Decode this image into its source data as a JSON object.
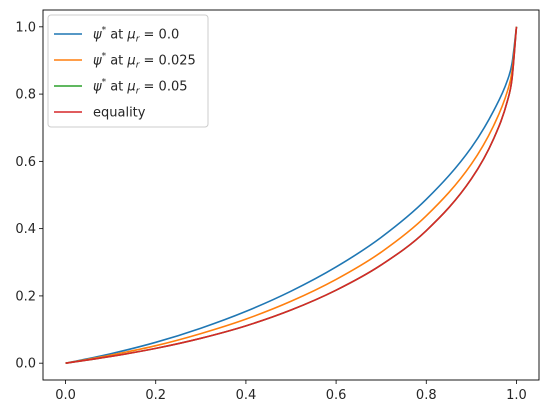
{
  "chart_data": {
    "type": "line",
    "title": "",
    "xlabel": "",
    "ylabel": "",
    "xlim": [
      -0.05,
      1.05
    ],
    "ylim": [
      -0.05,
      1.05
    ],
    "xticks": [
      "0.0",
      "0.2",
      "0.4",
      "0.6",
      "0.8",
      "1.0"
    ],
    "yticks": [
      "0.0",
      "0.2",
      "0.4",
      "0.6",
      "0.8",
      "1.0"
    ],
    "grid": false,
    "legend_position": "top-left",
    "x": [
      0.0,
      0.1,
      0.2,
      0.3,
      0.4,
      0.5,
      0.6,
      0.7,
      0.8,
      0.9,
      0.95,
      0.98,
      0.99,
      1.0
    ],
    "series": [
      {
        "name": "ψ* at μr = 0.0",
        "color": "#1f77b4",
        "values": [
          0.0,
          0.028,
          0.062,
          0.104,
          0.154,
          0.214,
          0.286,
          0.374,
          0.487,
          0.641,
          0.752,
          0.841,
          0.89,
          1.0
        ]
      },
      {
        "name": "ψ* at μr = 0.025",
        "color": "#ff7f0e",
        "values": [
          0.0,
          0.024,
          0.052,
          0.088,
          0.131,
          0.184,
          0.249,
          0.33,
          0.438,
          0.592,
          0.708,
          0.809,
          0.866,
          1.0
        ]
      },
      {
        "name": "ψ* at μr = 0.05",
        "color": "#2ca02c",
        "values": [
          0.0,
          0.02,
          0.044,
          0.074,
          0.111,
          0.158,
          0.217,
          0.292,
          0.394,
          0.548,
          0.669,
          0.78,
          0.844,
          1.0
        ]
      },
      {
        "name": "equality",
        "color": "#d62728",
        "values": [
          0.0,
          0.02,
          0.044,
          0.074,
          0.111,
          0.158,
          0.217,
          0.292,
          0.394,
          0.548,
          0.669,
          0.78,
          0.844,
          1.0
        ]
      }
    ],
    "legend": [
      {
        "prefix": "ψ",
        "sup": "*",
        "mid": " at ",
        "sym": "μ",
        "sub": "r",
        "val": " = 0.0"
      },
      {
        "prefix": "ψ",
        "sup": "*",
        "mid": " at ",
        "sym": "μ",
        "sub": "r",
        "val": " = 0.025"
      },
      {
        "prefix": "ψ",
        "sup": "*",
        "mid": " at ",
        "sym": "μ",
        "sub": "r",
        "val": " = 0.05"
      },
      {
        "plain": "equality"
      }
    ]
  }
}
